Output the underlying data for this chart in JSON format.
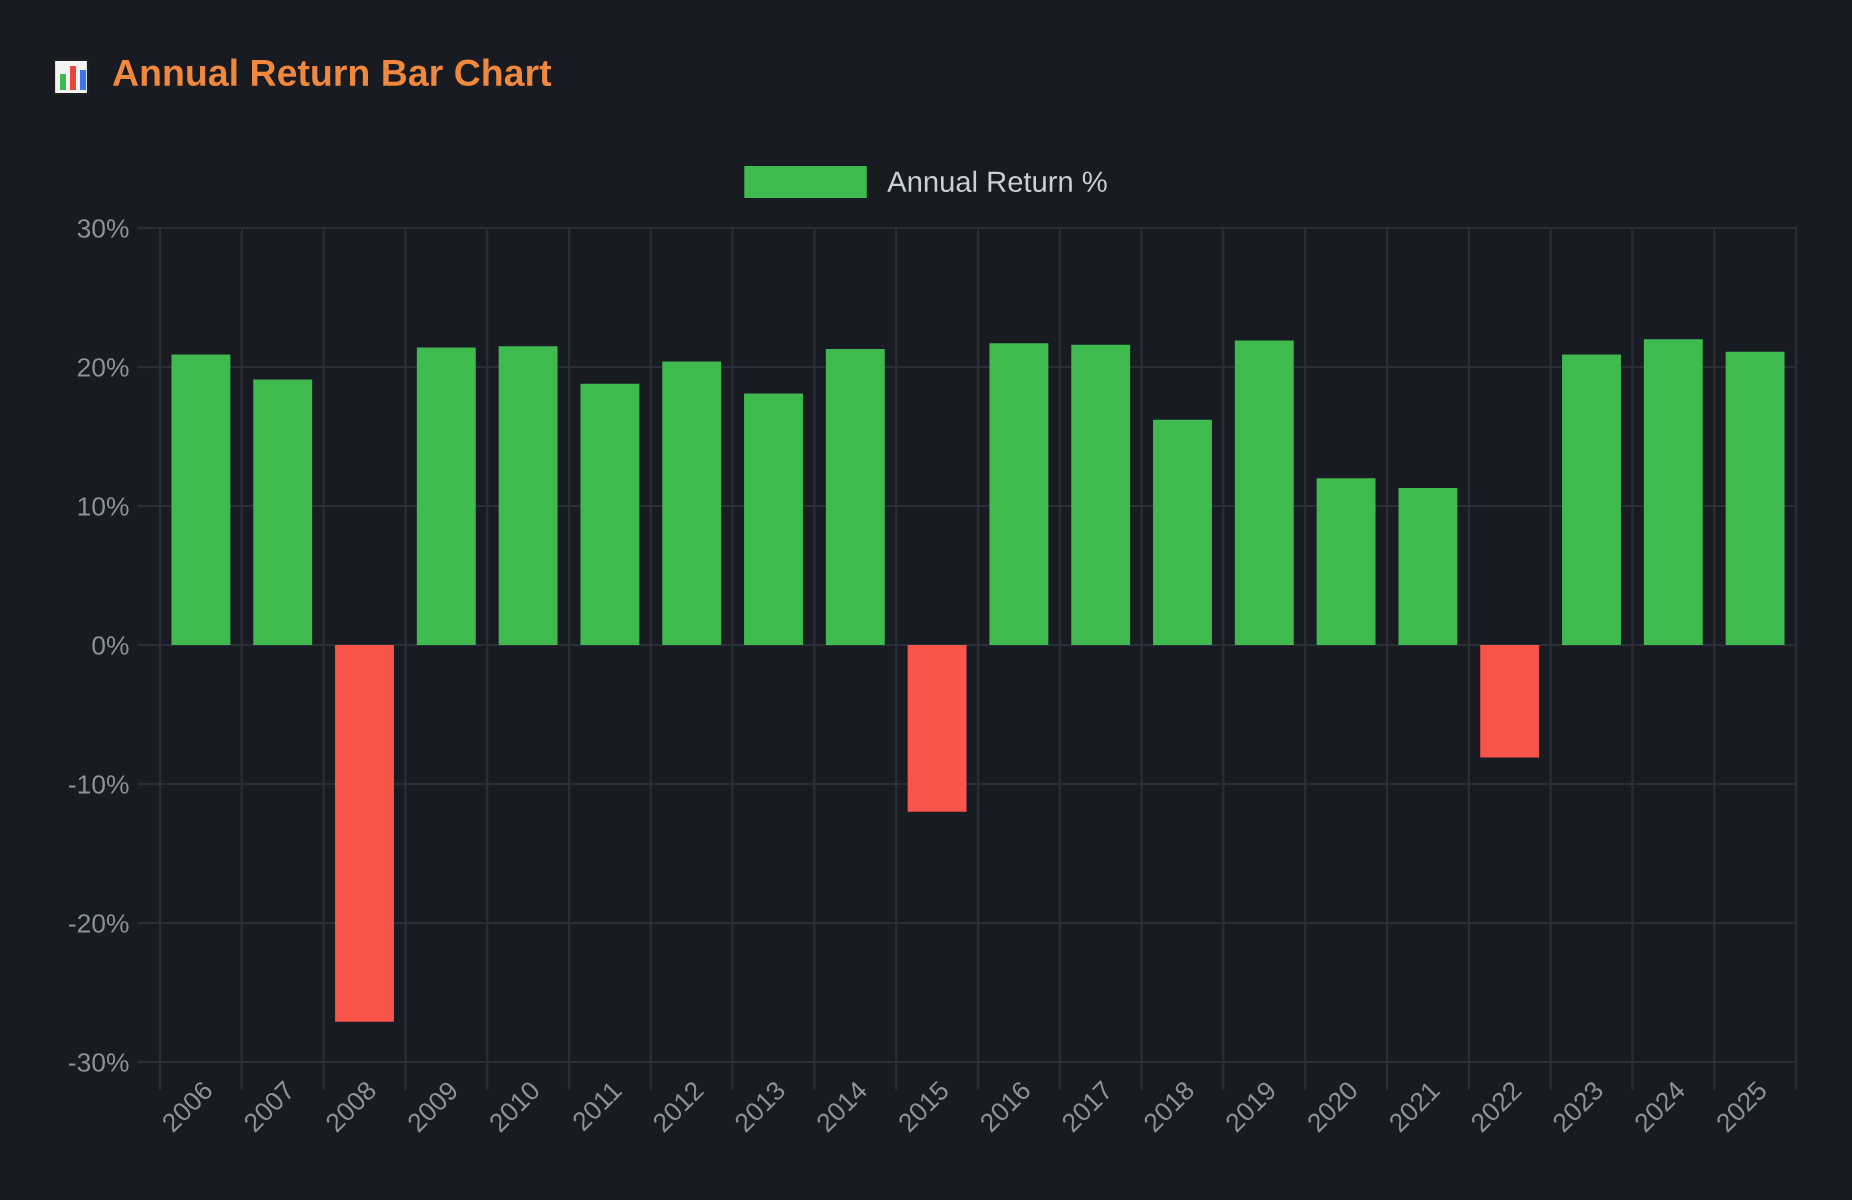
{
  "chart_data": {
    "type": "bar",
    "title": "Annual Return Bar Chart",
    "categories": [
      "2006",
      "2007",
      "2008",
      "2009",
      "2010",
      "2011",
      "2012",
      "2013",
      "2014",
      "2015",
      "2016",
      "2017",
      "2018",
      "2019",
      "2020",
      "2021",
      "2022",
      "2023",
      "2024",
      "2025"
    ],
    "series": [
      {
        "name": "Annual Return %",
        "color": "#3fba4f",
        "colors": [
          "#3fba4f",
          "#3fba4f",
          "#f9544a",
          "#3fba4f",
          "#3fba4f",
          "#3fba4f",
          "#3fba4f",
          "#3fba4f",
          "#3fba4f",
          "#f9544a",
          "#3fba4f",
          "#3fba4f",
          "#3fba4f",
          "#3fba4f",
          "#3fba4f",
          "#3fba4f",
          "#f9544a",
          "#3fba4f",
          "#3fba4f",
          "#3fba4f"
        ],
        "values": [
          20.9,
          19.1,
          -27.1,
          21.4,
          21.5,
          18.8,
          20.4,
          18.1,
          21.3,
          -12.0,
          21.7,
          21.6,
          16.2,
          21.9,
          12.0,
          11.3,
          -8.1,
          20.9,
          22.0,
          21.1
        ]
      }
    ],
    "ylim": [
      -30,
      30
    ],
    "yticks": [
      {
        "value": -30,
        "label": "-30%"
      },
      {
        "value": -20,
        "label": "-20%"
      },
      {
        "value": -10,
        "label": "-10%"
      },
      {
        "value": 0,
        "label": "0%"
      },
      {
        "value": 10,
        "label": "10%"
      },
      {
        "value": 20,
        "label": "20%"
      },
      {
        "value": 30,
        "label": "30%"
      }
    ],
    "grid": true,
    "legend": "top"
  }
}
